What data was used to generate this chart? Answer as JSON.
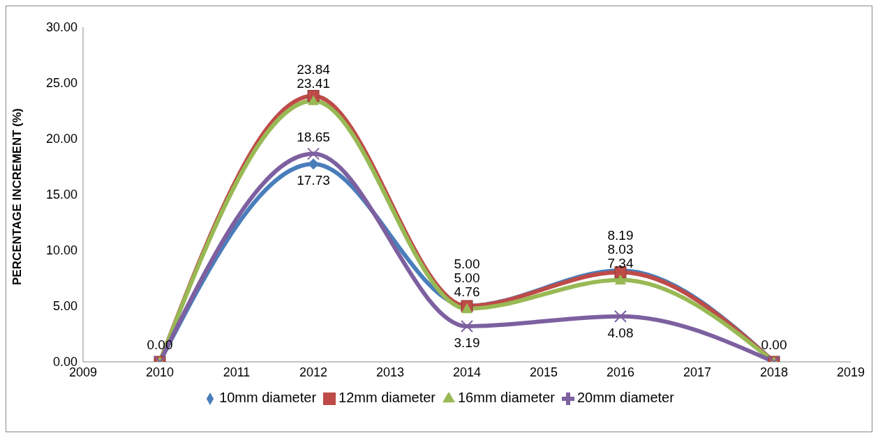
{
  "chart_data": {
    "type": "line",
    "ylabel": "PERCENTAGE INCREMENT (%)",
    "x": [
      2010,
      2012,
      2014,
      2016,
      2018
    ],
    "series": [
      {
        "name": "10mm diameter",
        "color": "#4a7ebb",
        "marker": "diamond",
        "values": [
          0,
          17.73,
          5.0,
          8.19,
          0
        ],
        "value_labels": [
          "0.00",
          "17.73",
          "5.00",
          "8.19",
          "0.00"
        ]
      },
      {
        "name": "12mm diameter",
        "color": "#be4b48",
        "marker": "square",
        "values": [
          0,
          23.84,
          5.0,
          8.03,
          0
        ],
        "value_labels": [
          null,
          "23.84",
          "5.00",
          "8.03",
          null
        ]
      },
      {
        "name": "16mm diameter",
        "color": "#98b954",
        "marker": "triangle",
        "values": [
          0,
          23.41,
          4.76,
          7.34,
          0
        ],
        "value_labels": [
          null,
          "23.41",
          "4.76",
          "7.34",
          null
        ]
      },
      {
        "name": "20mm diameter",
        "color": "#7d60a0",
        "marker": "cross",
        "values": [
          0,
          18.65,
          3.19,
          4.08,
          0
        ],
        "value_labels": [
          null,
          "18.65",
          "3.19",
          "4.08",
          null
        ]
      }
    ],
    "xlim": [
      2009,
      2019
    ],
    "xticks": [
      2009,
      2010,
      2011,
      2012,
      2013,
      2014,
      2015,
      2016,
      2017,
      2018,
      2019
    ],
    "ylim": [
      0,
      30
    ],
    "yticks": [
      {
        "value": 0,
        "label": "0.00"
      },
      {
        "value": 5,
        "label": "5.00"
      },
      {
        "value": 10,
        "label": "10.00"
      },
      {
        "value": 15,
        "label": "15.00"
      },
      {
        "value": 20,
        "label": "20.00"
      },
      {
        "value": 25,
        "label": "25.00"
      },
      {
        "value": 30,
        "label": "30.00"
      }
    ],
    "grid": false,
    "legend": "bottom",
    "line_style": "solid"
  }
}
